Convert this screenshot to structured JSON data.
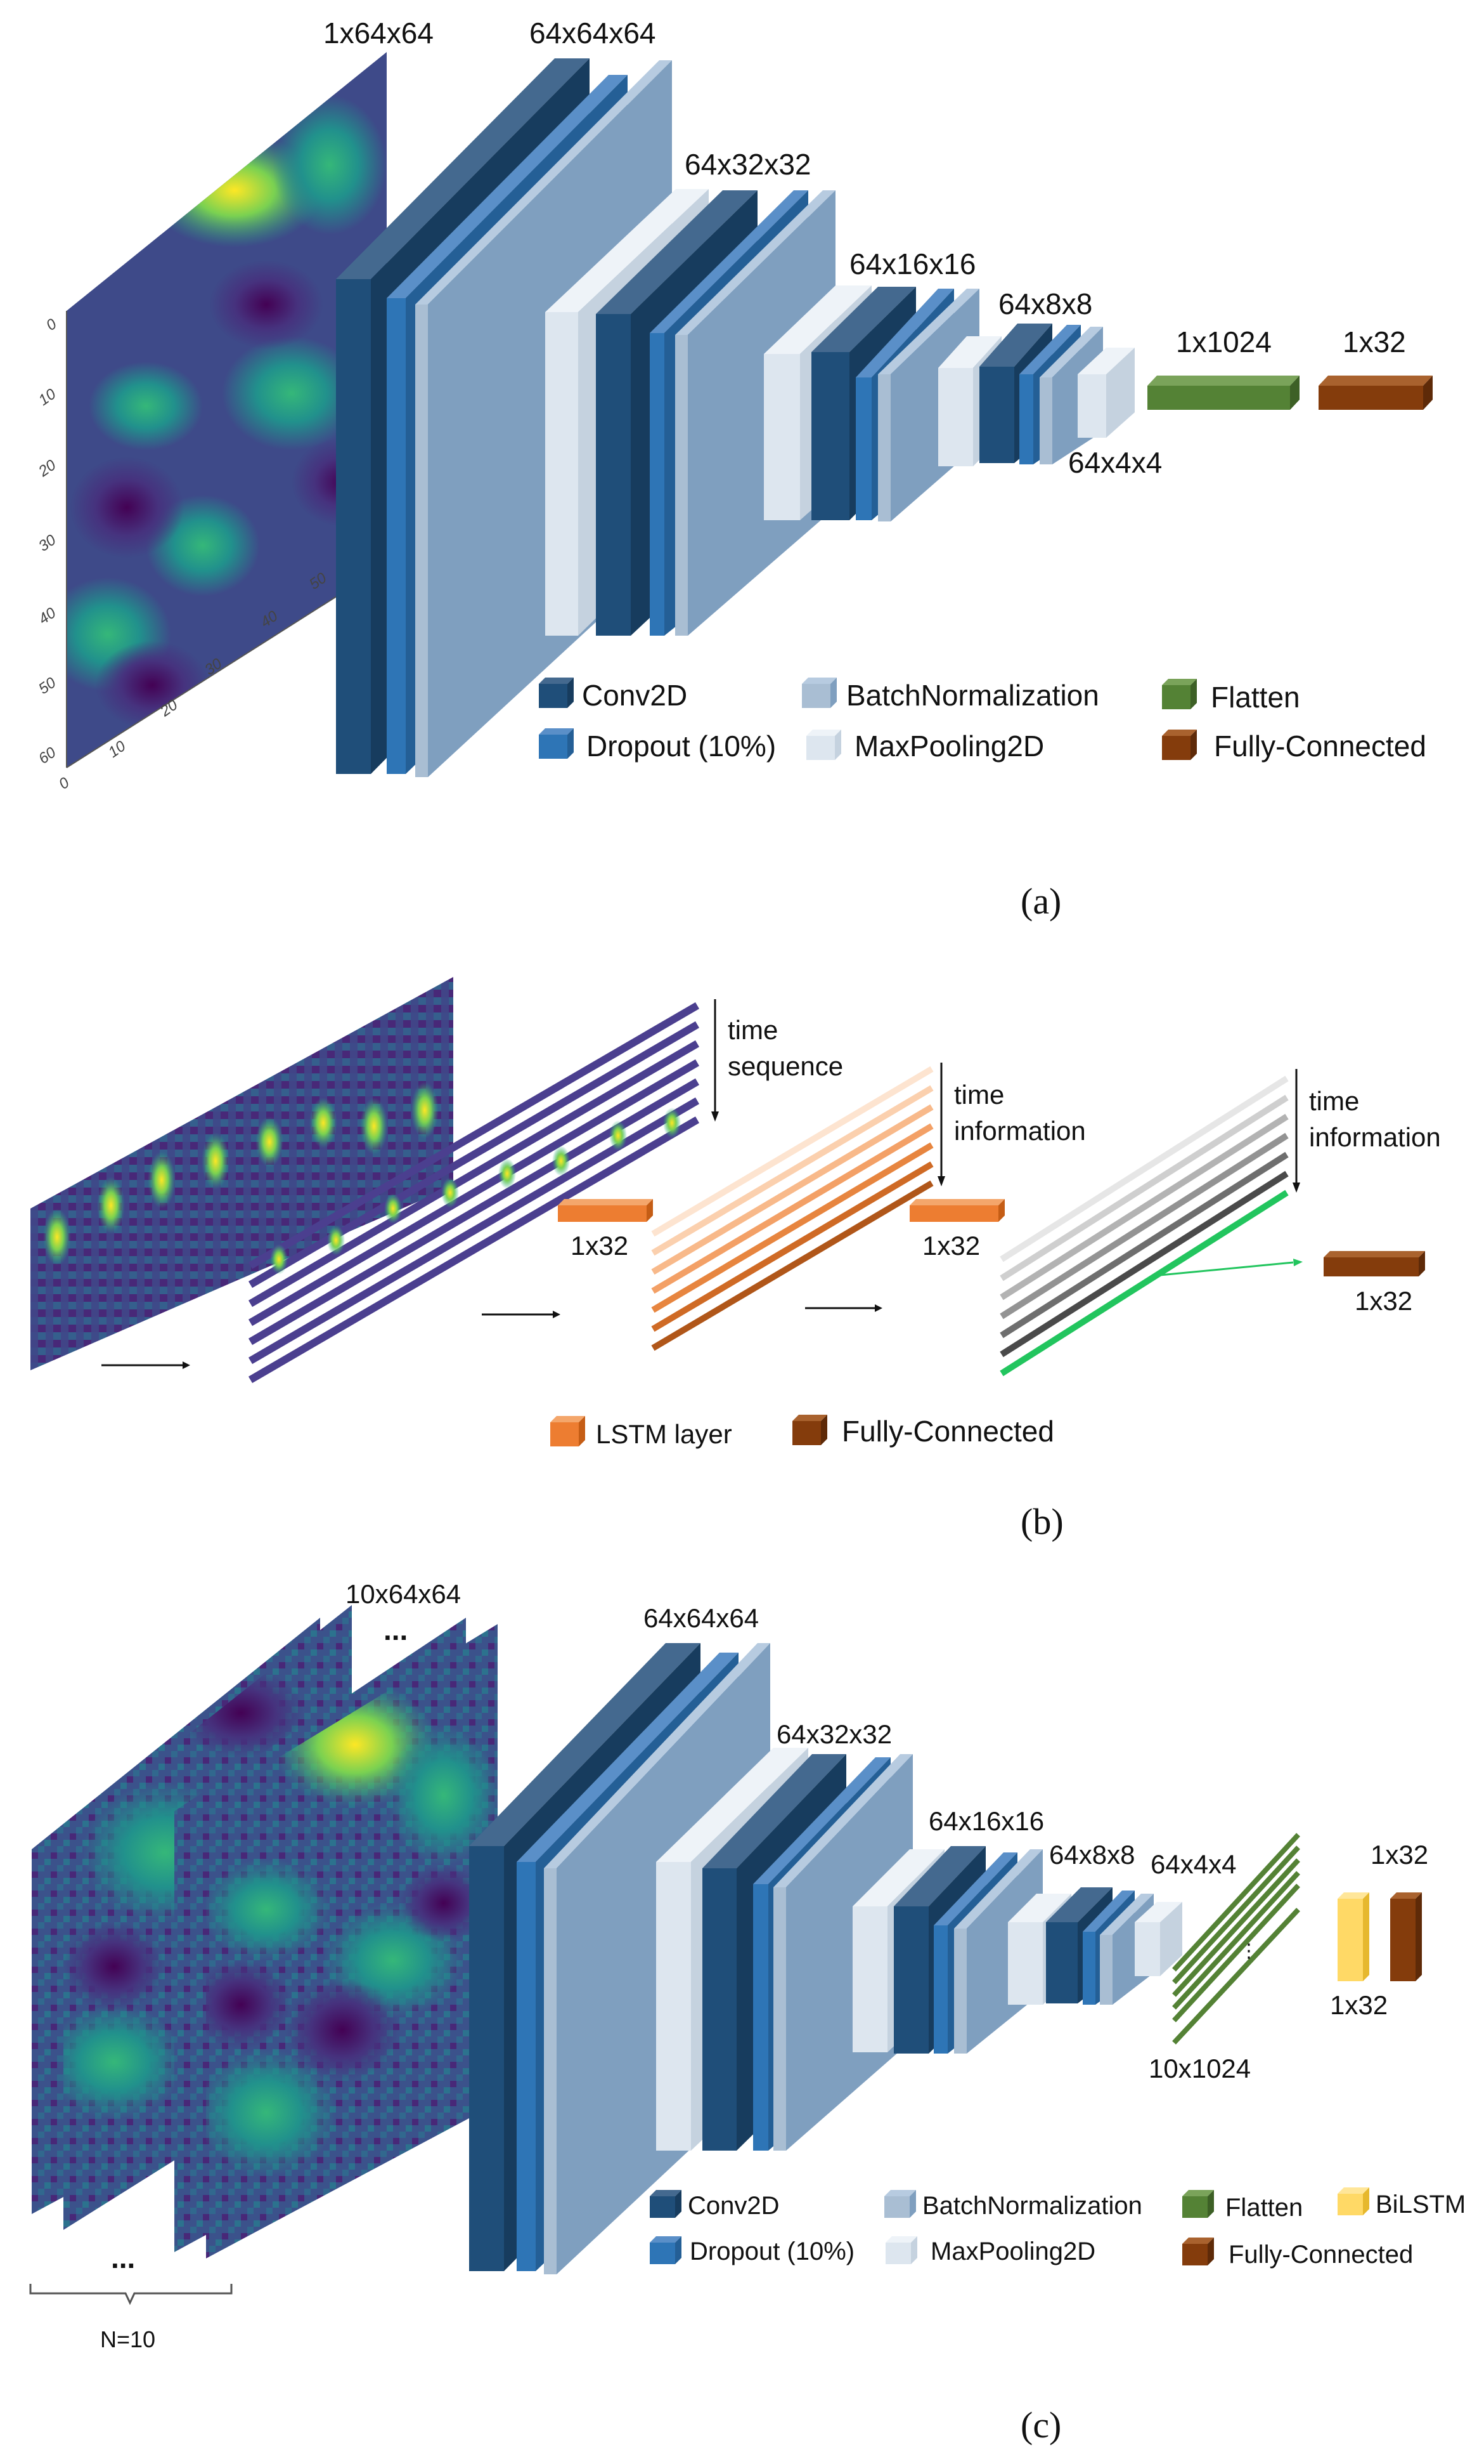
{
  "panel_a": {
    "caption": "(a)",
    "input_dims": "1x64x64",
    "layer_dims": [
      "64x64x64",
      "64x32x32",
      "64x16x16",
      "64x8x8",
      "64x4x4",
      "1x1024",
      "1x32"
    ],
    "axis_ticks_y": [
      "0",
      "10",
      "20",
      "30",
      "40",
      "50",
      "60"
    ],
    "axis_ticks_x": [
      "0",
      "10",
      "20",
      "30",
      "40",
      "50"
    ],
    "legend": {
      "conv2d": "Conv2D",
      "dropout": "Dropout (10%)",
      "batchnorm": "BatchNormalization",
      "maxpool": "MaxPooling2D",
      "flatten": "Flatten",
      "fc": "Fully-Connected"
    }
  },
  "panel_b": {
    "caption": "(b)",
    "time_sequence": [
      "time",
      "sequence"
    ],
    "time_information_1": [
      "time",
      "information"
    ],
    "time_information_2": [
      "time",
      "information"
    ],
    "lstm1_dims": "1x32",
    "lstm2_dims": "1x32",
    "fc_dims": "1x32",
    "legend": {
      "lstm": "LSTM layer",
      "fc": "Fully-Connected"
    }
  },
  "panel_c": {
    "caption": "(c)",
    "input_dims": "10x64x64",
    "ellipsis": "...",
    "n_label": "N=10",
    "layer_dims": [
      "64x64x64",
      "64x32x32",
      "64x16x16",
      "64x8x8",
      "64x4x4",
      "10x1024"
    ],
    "bilstm_dims": "1x32",
    "fc_dims": "1x32",
    "flatten_ellipsis": "⋮",
    "legend": {
      "conv2d": "Conv2D",
      "dropout": "Dropout (10%)",
      "batchnorm": "BatchNormalization",
      "maxpool": "MaxPooling2D",
      "flatten": "Flatten",
      "bilstm": "BiLSTM",
      "fc": "Fully-Connected"
    }
  },
  "colors": {
    "conv2d": "#1f4e79",
    "dropout": "#2e75b6",
    "batchnorm": "#7f9fbf",
    "maxpool": "#dde6ef",
    "flatten": "#548235",
    "fc": "#843c0c",
    "lstm": "#ed7d31",
    "bilstm": "#ffd966",
    "green_line": "#22c55e"
  }
}
